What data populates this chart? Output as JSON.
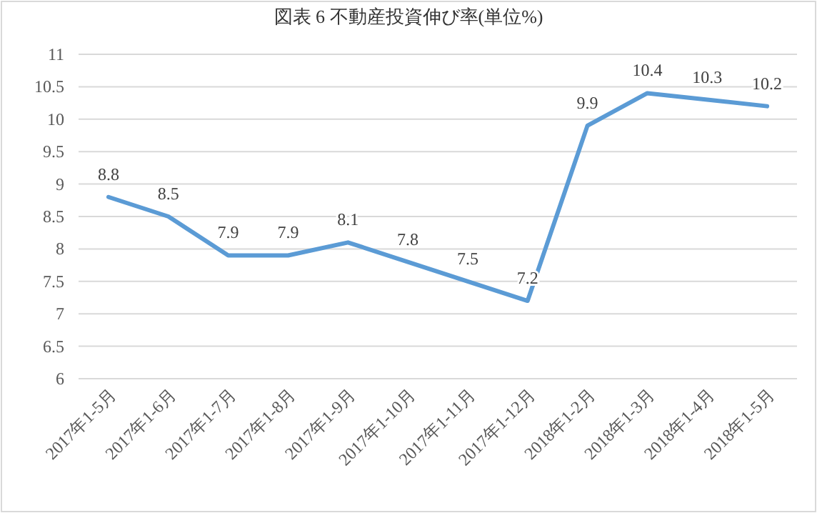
{
  "chart_data": {
    "type": "line",
    "title": "図表 6 不動産投資伸び率(単位%)",
    "categories": [
      "2017年1-5月",
      "2017年1-6月",
      "2017年1-7月",
      "2017年1-8月",
      "2017年1-9月",
      "2017年1-10月",
      "2017年1-11月",
      "2017年1-12月",
      "2018年1-2月",
      "2018年1-3月",
      "2018年1-4月",
      "2018年1-5月"
    ],
    "series": [
      {
        "color": "#5b9bd5",
        "values": [
          8.8,
          8.5,
          7.9,
          7.9,
          8.1,
          7.8,
          7.5,
          7.2,
          9.9,
          10.4,
          10.3,
          10.2
        ]
      }
    ],
    "ylim": [
      6,
      11
    ],
    "yticks": [
      6,
      6.5,
      7,
      7.5,
      8,
      8.5,
      9,
      9.5,
      10,
      10.5,
      11
    ],
    "grid": "y",
    "data_labels": true,
    "marker": "none",
    "line_style": "solid"
  }
}
